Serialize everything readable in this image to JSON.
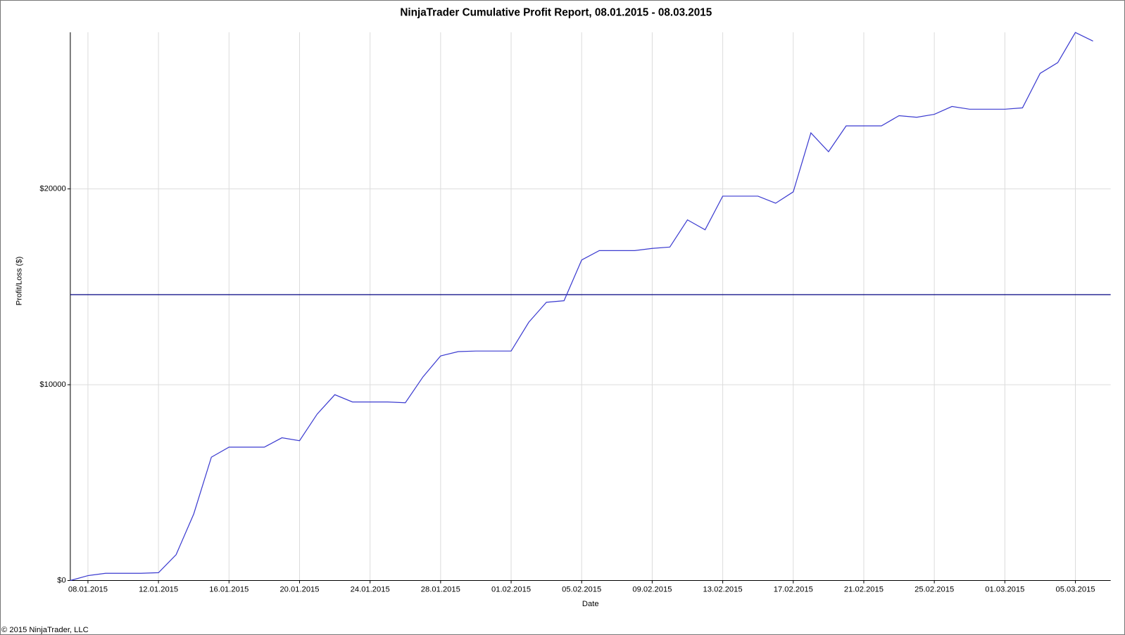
{
  "chart_data": {
    "type": "line",
    "title": "NinjaTrader Cumulative Profit Report, 08.01.2015 - 08.03.2015",
    "x_label": "Date",
    "y_label": "Profit/Loss ($)",
    "footer": "© 2015 NinjaTrader, LLC",
    "x": [
      "07.01.2015",
      "08.01.2015",
      "09.01.2015",
      "10.01.2015",
      "11.01.2015",
      "12.01.2015",
      "13.01.2015",
      "14.01.2015",
      "15.01.2015",
      "16.01.2015",
      "17.01.2015",
      "18.01.2015",
      "19.01.2015",
      "20.01.2015",
      "21.01.2015",
      "22.01.2015",
      "23.01.2015",
      "24.01.2015",
      "25.01.2015",
      "26.01.2015",
      "27.01.2015",
      "28.01.2015",
      "29.01.2015",
      "30.01.2015",
      "31.01.2015",
      "01.02.2015",
      "02.02.2015",
      "03.02.2015",
      "04.02.2015",
      "05.02.2015",
      "06.02.2015",
      "07.02.2015",
      "08.02.2015",
      "09.02.2015",
      "10.02.2015",
      "11.02.2015",
      "12.02.2015",
      "13.02.2015",
      "14.02.2015",
      "15.02.2015",
      "16.02.2015",
      "17.02.2015",
      "18.02.2015",
      "19.02.2015",
      "20.02.2015",
      "21.02.2015",
      "22.02.2015",
      "23.02.2015",
      "24.02.2015",
      "25.02.2015",
      "26.02.2015",
      "27.02.2015",
      "28.02.2015",
      "01.03.2015",
      "02.03.2015",
      "03.03.2015",
      "04.03.2015",
      "05.03.2015",
      "06.03.2015"
    ],
    "series": [
      {
        "name": "Cumulative profit",
        "color": "#3b3bd0",
        "values": [
          0,
          250,
          370,
          370,
          370,
          400,
          1320,
          3400,
          6300,
          6810,
          6810,
          6810,
          7290,
          7140,
          8500,
          9490,
          9120,
          9120,
          9120,
          9080,
          10400,
          11470,
          11690,
          11720,
          11720,
          11720,
          13190,
          14210,
          14290,
          16370,
          16850,
          16850,
          16850,
          16960,
          17030,
          18420,
          17910,
          19630,
          19630,
          19630,
          19270,
          19850,
          22860,
          21900,
          23220,
          23220,
          23220,
          23740,
          23660,
          23810,
          24210,
          24070,
          24070,
          24070,
          24140,
          25900,
          26450,
          27990,
          27550
        ]
      }
    ],
    "reference_line": {
      "value": 14600,
      "color": "#000080"
    },
    "xlim": [
      "07.01.2015",
      "07.03.2015"
    ],
    "xticks": [
      "08.01.2015",
      "12.01.2015",
      "16.01.2015",
      "20.01.2015",
      "24.01.2015",
      "28.01.2015",
      "01.02.2015",
      "05.02.2015",
      "09.02.2015",
      "13.02.2015",
      "17.02.2015",
      "21.02.2015",
      "25.02.2015",
      "01.03.2015",
      "05.03.2015"
    ],
    "ylim": [
      0,
      28000
    ],
    "yticks": [
      {
        "value": 0,
        "label": "$0"
      },
      {
        "value": 10000,
        "label": "$10000"
      },
      {
        "value": 20000,
        "label": "$20000"
      }
    ],
    "grid": true
  }
}
